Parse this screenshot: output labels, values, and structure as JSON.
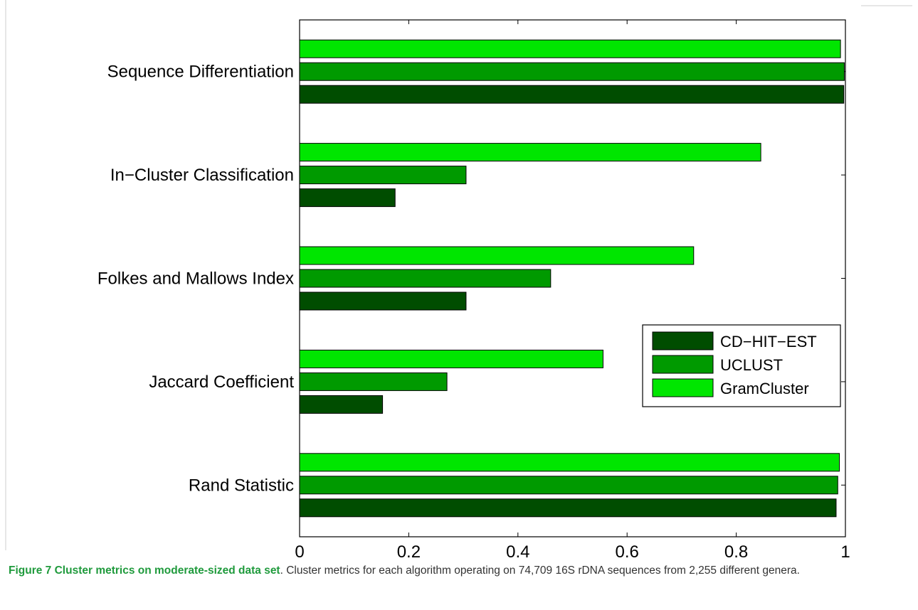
{
  "chart_data": {
    "type": "bar",
    "orientation": "horizontal",
    "categories": [
      "Rand Statistic",
      "Jaccard Coefficient",
      "Folkes and Mallows Index",
      "In−Cluster Classification",
      "Sequence Differentiation"
    ],
    "series": [
      {
        "name": "CD−HIT−EST",
        "color": "#004d00",
        "values": [
          0.983,
          0.152,
          0.305,
          0.175,
          0.997
        ]
      },
      {
        "name": "UCLUST",
        "color": "#009a00",
        "values": [
          0.986,
          0.27,
          0.46,
          0.305,
          0.998
        ]
      },
      {
        "name": "GramCluster",
        "color": "#00e600",
        "values": [
          0.989,
          0.556,
          0.722,
          0.845,
          0.991
        ]
      }
    ],
    "xlim": [
      0,
      1
    ],
    "xticks": [
      "0",
      "0.2",
      "0.4",
      "0.6",
      "0.8",
      "1"
    ],
    "xtick_values": [
      0,
      0.2,
      0.4,
      0.6,
      0.8,
      1
    ],
    "legend_position": "center-right",
    "grid": false
  },
  "caption": {
    "number": "Figure 7",
    "title": "Cluster metrics on moderate-sized data set",
    "body": ". Cluster metrics for each algorithm operating on 74,709 16S rDNA sequences from 2,255 different genera."
  }
}
